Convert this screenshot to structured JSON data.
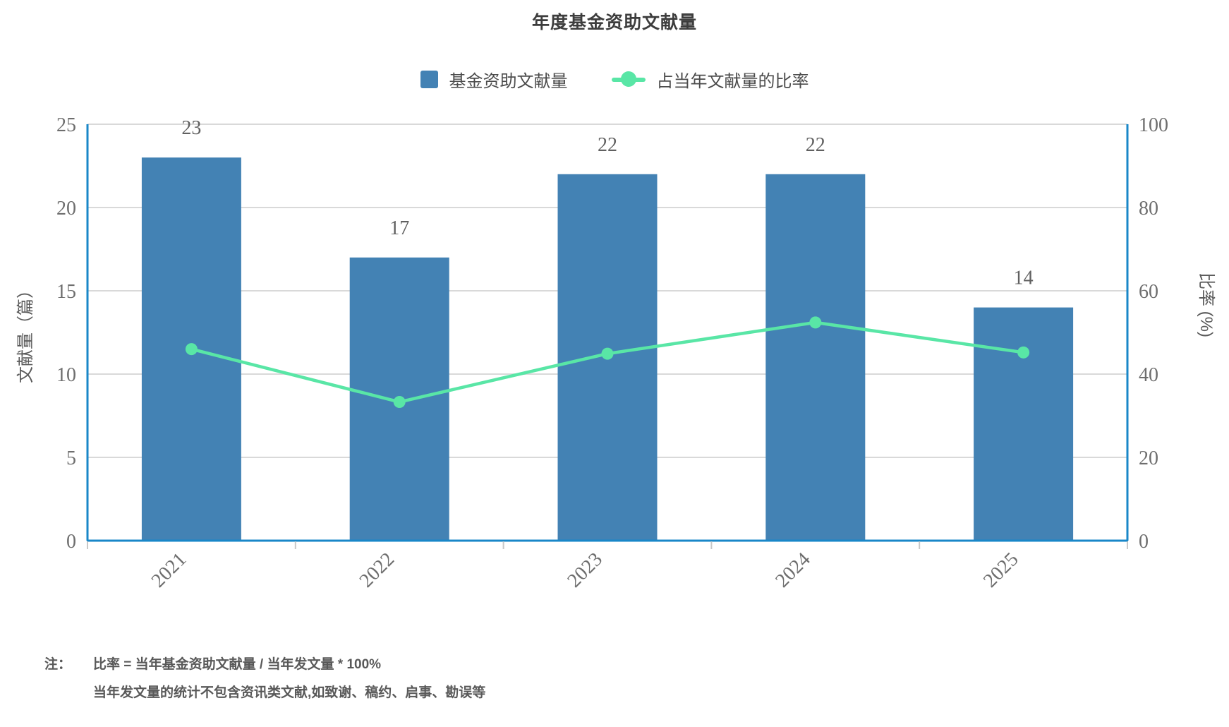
{
  "chart_data": {
    "type": "bar+line combo",
    "title": "年度基金资助文献量",
    "categories": [
      "2021",
      "2022",
      "2023",
      "2024",
      "2025"
    ],
    "series": [
      {
        "name": "基金资助文献量",
        "type": "bar",
        "axis": "left",
        "color": "#4382b4",
        "values": [
          23,
          17,
          22,
          22,
          14
        ],
        "value_labels": [
          "23",
          "17",
          "22",
          "22",
          "14"
        ]
      },
      {
        "name": "占当年文献量的比率",
        "type": "line",
        "axis": "right",
        "color": "#59e6a6",
        "unit": "%",
        "values": [
          46.0,
          33.3,
          44.9,
          52.4,
          45.2
        ]
      }
    ],
    "axes": {
      "left": {
        "label": "文献量（篇）",
        "min": 0,
        "max": 25,
        "step": 5,
        "ticks": [
          "0",
          "5",
          "10",
          "15",
          "20",
          "25"
        ]
      },
      "right": {
        "label": "比率 (%)",
        "min": 0,
        "max": 100,
        "step": 20,
        "ticks": [
          "0",
          "20",
          "40",
          "60",
          "80",
          "100"
        ]
      },
      "x": {
        "labels": [
          "2021",
          "2022",
          "2023",
          "2024",
          "2025"
        ],
        "label_rotate_deg": -45
      }
    },
    "grid": "horizontal-only",
    "legend_position": "top-center",
    "colors": {
      "bar": "#4382b4",
      "line": "#59e6a6",
      "axis_line": "#1987c8",
      "gridline": "#d9d9d9",
      "tick_mark": "#c8c8c8",
      "tick_text": "#6e6e6e",
      "value_label_text": "#606060",
      "axis_name_text": "#5a5a5a"
    }
  },
  "legend": {
    "items": [
      {
        "label": "基金资助文献量",
        "marker": "square"
      },
      {
        "label": "占当年文献量的比率",
        "marker": "line-dot"
      }
    ]
  },
  "note": {
    "prefix": "注：",
    "line1": "比率 = 当年基金资助文献量 / 当年发文量 * 100%",
    "line2": "当年发文量的统计不包含资讯类文献,如致谢、稿约、启事、勘误等"
  }
}
